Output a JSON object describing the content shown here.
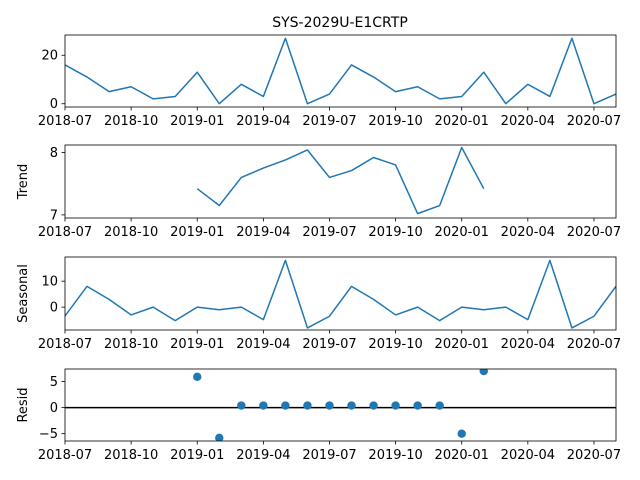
{
  "chart_data": {
    "type": "line",
    "title": "SYS-2029U-E1CRTP",
    "x_tick_labels": [
      "2018-07",
      "2018-10",
      "2019-01",
      "2019-04",
      "2019-07",
      "2019-10",
      "2020-01",
      "2020-04",
      "2020-07"
    ],
    "x": [
      "2018-07",
      "2018-08",
      "2018-09",
      "2018-10",
      "2018-11",
      "2018-12",
      "2019-01",
      "2019-02",
      "2019-03",
      "2019-04",
      "2019-05",
      "2019-06",
      "2019-07",
      "2019-08",
      "2019-09",
      "2019-10",
      "2019-11",
      "2019-12",
      "2020-01",
      "2020-02",
      "2020-03",
      "2020-04",
      "2020-05",
      "2020-06",
      "2020-07",
      "2020-08"
    ],
    "xlim": [
      "2018-07",
      "2020-08"
    ],
    "panels": [
      {
        "name": "observed",
        "ylabel": "",
        "type": "line",
        "yticks": [
          0,
          20
        ],
        "ylim": [
          -1.35,
          28.35
        ],
        "values": [
          16,
          11,
          5,
          7,
          2,
          3,
          13,
          0,
          8,
          3,
          27,
          0,
          4,
          16,
          11,
          5,
          7,
          2,
          3,
          13,
          0,
          8,
          3,
          27,
          0,
          4
        ]
      },
      {
        "name": "trend",
        "ylabel": "Trend",
        "type": "line",
        "yticks": [
          7,
          8
        ],
        "ylim": [
          6.95,
          8.12
        ],
        "values": [
          null,
          null,
          null,
          null,
          null,
          null,
          7.42,
          7.15,
          7.6,
          7.75,
          7.88,
          8.04,
          7.6,
          7.71,
          7.92,
          7.8,
          7.02,
          7.15,
          8.08,
          7.42,
          null,
          null,
          null,
          null,
          null,
          null
        ]
      },
      {
        "name": "seasonal",
        "ylabel": "Seasonal",
        "type": "line",
        "yticks": [
          0,
          10
        ],
        "ylim": [
          -8.8,
          19.3
        ],
        "values": [
          -3.4,
          8,
          3,
          -3,
          0,
          -5.2,
          0,
          -1,
          0,
          -4.8,
          18,
          -8,
          -3.5,
          8,
          3,
          -3,
          0,
          -5.2,
          0,
          -1,
          0,
          -4.8,
          18,
          -8,
          -3.5,
          8
        ]
      },
      {
        "name": "resid",
        "ylabel": "Resid",
        "type": "scatter",
        "yticks": [
          -5,
          0,
          5
        ],
        "ylim": [
          -6.4,
          7.4
        ],
        "zero_line": true,
        "values": [
          null,
          null,
          null,
          null,
          null,
          null,
          5.9,
          -5.8,
          0.4,
          0.4,
          0.4,
          0.4,
          0.4,
          0.4,
          0.4,
          0.4,
          0.4,
          0.4,
          -5,
          7,
          null,
          null,
          null,
          null,
          null,
          null
        ]
      }
    ],
    "colors": {
      "series": "#1f77b4",
      "axes": "#000000",
      "zero_line": "#000000"
    }
  }
}
